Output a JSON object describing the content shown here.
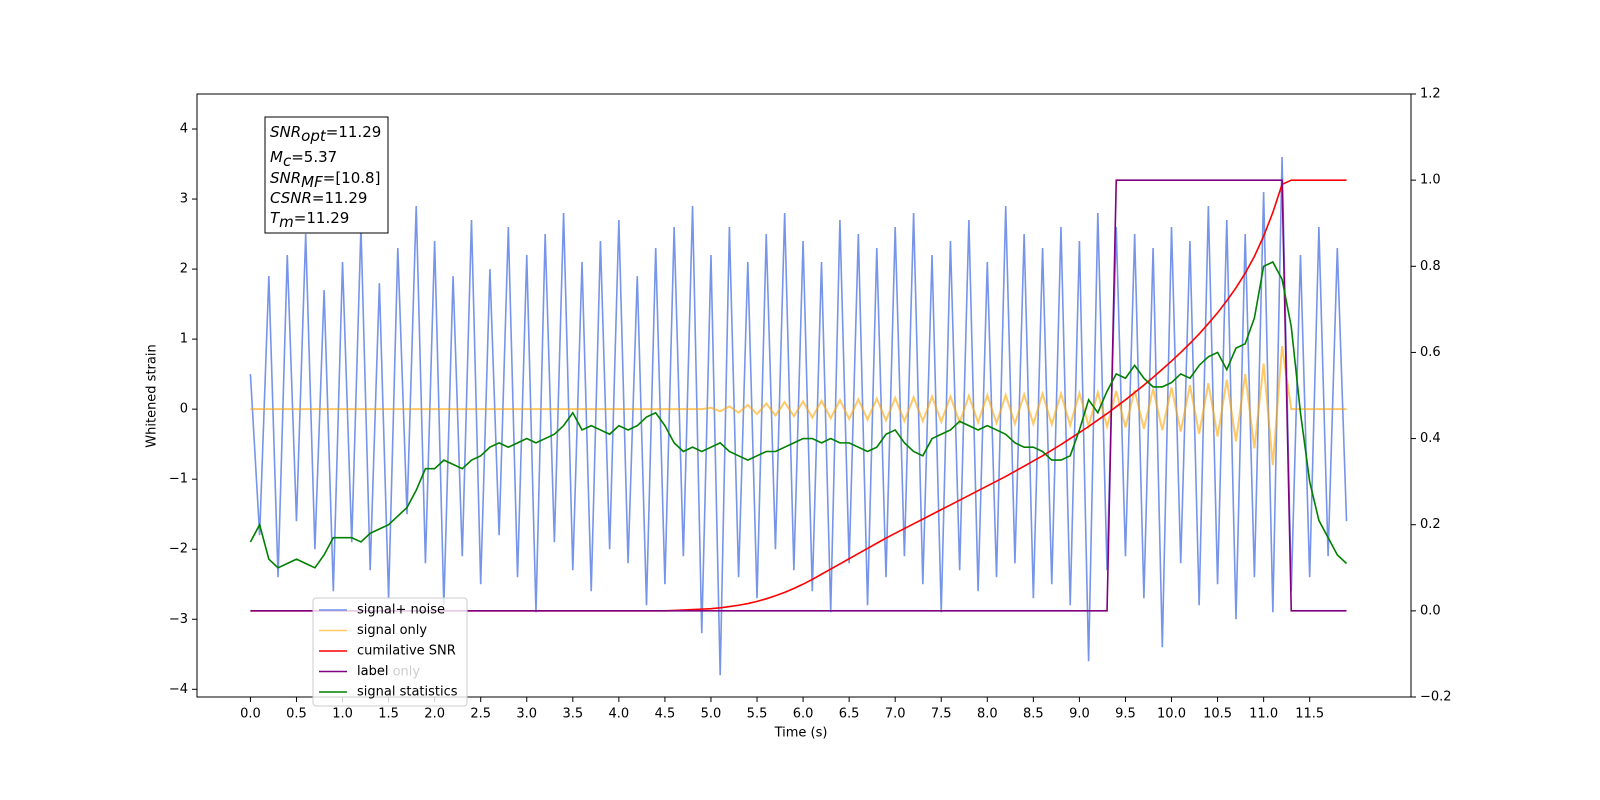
{
  "chart_data": {
    "type": "line",
    "xlabel": "Time (s)",
    "ylabel": "Whitened strain",
    "xlim": [
      -0.58,
      12.6
    ],
    "ylim": [
      -4.11,
      4.5
    ],
    "y2lim": [
      -0.2,
      1.2
    ],
    "xticks": [
      {
        "value": 0,
        "label": "0.0"
      },
      0.5,
      {
        "value": 1,
        "label": "1.0"
      },
      1.5,
      {
        "value": 2,
        "label": "2.0"
      },
      2.5,
      {
        "value": 3,
        "label": "3.0"
      },
      3.5,
      {
        "value": 4,
        "label": "4.0"
      },
      4.5,
      {
        "value": 5,
        "label": "5.0"
      },
      5.5,
      {
        "value": 6,
        "label": "6.0"
      },
      6.5,
      {
        "value": 7,
        "label": "7.0"
      },
      7.5,
      {
        "value": 8,
        "label": "8.0"
      },
      8.5,
      {
        "value": 9,
        "label": "9.0"
      },
      9.5,
      {
        "value": 10,
        "label": "10.0"
      },
      10.5,
      {
        "value": 11,
        "label": "11.0"
      },
      11.5
    ],
    "yticks": [
      {
        "value": -4,
        "label": "−4"
      },
      {
        "value": -3,
        "label": "−3"
      },
      {
        "value": -2,
        "label": "−2"
      },
      {
        "value": -1,
        "label": "−1"
      },
      0,
      1,
      2,
      3,
      4
    ],
    "y2ticks": [
      {
        "value": -0.2,
        "label": "−0.2"
      },
      {
        "value": 0,
        "label": "0.0"
      },
      0.2,
      0.4,
      0.6,
      0.8,
      {
        "value": 1,
        "label": "1.0"
      },
      1.2
    ],
    "grid": false,
    "legend": "lower left",
    "legend_ghost_text": "label only",
    "stats": [
      {
        "symbol": "SNR",
        "sub": "opt",
        "text": "=11.29"
      },
      {
        "symbol": "M",
        "sub": "c",
        "text": "=5.37"
      },
      {
        "symbol": "SNR",
        "sub": "MF",
        "text": "=[10.8]"
      },
      {
        "symbol": "CSNR",
        "text": "=11.29"
      },
      {
        "symbol": "T",
        "sub": "m",
        "text": "=11.29"
      }
    ],
    "x": [
      0,
      0.1,
      0.2,
      0.3,
      0.4,
      0.5,
      0.6,
      0.7,
      0.8,
      0.9,
      1,
      1.1,
      1.2,
      1.3,
      1.4,
      1.5,
      1.6,
      1.7,
      1.8,
      1.9,
      2,
      2.1,
      2.2,
      2.3,
      2.4,
      2.5,
      2.6,
      2.7,
      2.8,
      2.9,
      3,
      3.1,
      3.2,
      3.3,
      3.4,
      3.5,
      3.6,
      3.7,
      3.8,
      3.9,
      4,
      4.1,
      4.2,
      4.3,
      4.4,
      4.5,
      4.6,
      4.7,
      4.8,
      4.9,
      5,
      5.1,
      5.2,
      5.3,
      5.4,
      5.5,
      5.6,
      5.7,
      5.8,
      5.9,
      6,
      6.1,
      6.2,
      6.3,
      6.4,
      6.5,
      6.6,
      6.7,
      6.8,
      6.9,
      7,
      7.1,
      7.2,
      7.3,
      7.4,
      7.5,
      7.6,
      7.7,
      7.8,
      7.9,
      8,
      8.1,
      8.2,
      8.3,
      8.4,
      8.5,
      8.6,
      8.7,
      8.8,
      8.9,
      9,
      9.1,
      9.2,
      9.3,
      9.4,
      9.5,
      9.6,
      9.7,
      9.8,
      9.9,
      10,
      10.1,
      10.2,
      10.3,
      10.4,
      10.5,
      10.6,
      10.7,
      10.8,
      10.9,
      11,
      11.1,
      11.2,
      11.3,
      11.4,
      11.5,
      11.6,
      11.7,
      11.8,
      11.9
    ],
    "series": [
      {
        "name": "signal+ noise",
        "color": "#6f8ee8",
        "axis": "y",
        "values": [
          0.5,
          -1.8,
          1.9,
          -2.4,
          2.2,
          -1.6,
          2.5,
          -2.0,
          1.7,
          -2.6,
          2.1,
          -1.9,
          2.6,
          -2.3,
          1.8,
          -2.7,
          2.3,
          -1.5,
          2.9,
          -2.2,
          2.4,
          -2.8,
          1.9,
          -2.1,
          2.7,
          -2.5,
          2.0,
          -1.8,
          2.6,
          -2.4,
          2.2,
          -2.9,
          2.5,
          -1.9,
          2.8,
          -2.3,
          2.1,
          -2.6,
          2.4,
          -2.0,
          2.7,
          -2.2,
          1.9,
          -2.8,
          2.3,
          -2.5,
          2.6,
          -2.1,
          2.9,
          -3.2,
          2.2,
          -3.8,
          2.6,
          -2.4,
          2.1,
          -2.7,
          2.5,
          -2.0,
          2.8,
          -2.3,
          2.4,
          -2.6,
          2.1,
          -2.9,
          2.7,
          -2.2,
          2.5,
          -2.8,
          2.3,
          -2.4,
          2.6,
          -2.1,
          2.8,
          -2.5,
          2.2,
          -2.9,
          2.4,
          -2.3,
          2.7,
          -2.6,
          2.1,
          -2.4,
          2.9,
          -2.2,
          2.5,
          -2.7,
          2.3,
          -2.5,
          2.6,
          -2.8,
          2.4,
          -3.6,
          2.8,
          -2.3,
          2.6,
          -2.1,
          2.5,
          -2.7,
          2.3,
          -3.4,
          2.6,
          -2.2,
          2.4,
          -2.8,
          2.9,
          -2.5,
          2.7,
          -3.0,
          2.5,
          -2.4,
          3.1,
          -2.9,
          3.6,
          -2.6,
          2.2,
          -2.4,
          2.6,
          -2.1,
          2.3,
          -1.6
        ]
      },
      {
        "name": "signal only",
        "color": "#ffa500",
        "axis": "y",
        "values": [
          0,
          0,
          0,
          0,
          0,
          0,
          0,
          0,
          0,
          0,
          0,
          0,
          0,
          0,
          0,
          0,
          0,
          0,
          0,
          0,
          0,
          0,
          0,
          0,
          0,
          0,
          0,
          0,
          0,
          0,
          0,
          0,
          0,
          0,
          0,
          0,
          0,
          0,
          0,
          0,
          0,
          0,
          0,
          0,
          0,
          0,
          0,
          0,
          0,
          0,
          0.02,
          -0.03,
          0.04,
          -0.05,
          0.06,
          -0.07,
          0.08,
          -0.09,
          0.1,
          -0.1,
          0.11,
          -0.12,
          0.12,
          -0.13,
          0.13,
          -0.14,
          0.14,
          -0.15,
          0.15,
          -0.16,
          0.16,
          -0.17,
          0.17,
          -0.17,
          0.18,
          -0.18,
          0.18,
          -0.19,
          0.19,
          -0.19,
          0.2,
          -0.2,
          0.2,
          -0.21,
          0.21,
          -0.21,
          0.22,
          -0.22,
          0.22,
          -0.23,
          0.23,
          -0.24,
          0.24,
          -0.25,
          0.26,
          -0.26,
          0.27,
          -0.28,
          0.29,
          -0.3,
          0.31,
          -0.32,
          0.34,
          -0.35,
          0.37,
          -0.39,
          0.42,
          -0.46,
          0.5,
          -0.56,
          0.65,
          -0.8,
          0.9,
          0,
          0,
          0,
          0,
          0,
          0,
          0
        ]
      },
      {
        "name": "cumilative SNR",
        "color": "#ff0000",
        "axis": "y2",
        "values": [
          0,
          0,
          0,
          0,
          0,
          0,
          0,
          0,
          0,
          0,
          0,
          0,
          0,
          0,
          0,
          0,
          0,
          0,
          0,
          0,
          0,
          0,
          0,
          0,
          0,
          0,
          0,
          0,
          0,
          0,
          0,
          0,
          0,
          0,
          0,
          0,
          0,
          0,
          0,
          0,
          0,
          0,
          0,
          0,
          0,
          0,
          0.001,
          0.002,
          0.003,
          0.004,
          0.005,
          0.007,
          0.01,
          0.013,
          0.017,
          0.022,
          0.028,
          0.035,
          0.043,
          0.052,
          0.062,
          0.073,
          0.085,
          0.097,
          0.109,
          0.121,
          0.133,
          0.145,
          0.157,
          0.169,
          0.18,
          0.191,
          0.202,
          0.213,
          0.224,
          0.235,
          0.246,
          0.257,
          0.268,
          0.279,
          0.29,
          0.301,
          0.312,
          0.324,
          0.336,
          0.348,
          0.36,
          0.373,
          0.386,
          0.4,
          0.414,
          0.428,
          0.443,
          0.458,
          0.474,
          0.49,
          0.507,
          0.524,
          0.542,
          0.561,
          0.58,
          0.6,
          0.621,
          0.643,
          0.667,
          0.692,
          0.72,
          0.75,
          0.784,
          0.823,
          0.87,
          0.925,
          0.99,
          1,
          1,
          1,
          1,
          1,
          1,
          1
        ]
      },
      {
        "name": "label",
        "color": "#800080",
        "axis": "y2",
        "values": [
          0,
          0,
          0,
          0,
          0,
          0,
          0,
          0,
          0,
          0,
          0,
          0,
          0,
          0,
          0,
          0,
          0,
          0,
          0,
          0,
          0,
          0,
          0,
          0,
          0,
          0,
          0,
          0,
          0,
          0,
          0,
          0,
          0,
          0,
          0,
          0,
          0,
          0,
          0,
          0,
          0,
          0,
          0,
          0,
          0,
          0,
          0,
          0,
          0,
          0,
          0,
          0,
          0,
          0,
          0,
          0,
          0,
          0,
          0,
          0,
          0,
          0,
          0,
          0,
          0,
          0,
          0,
          0,
          0,
          0,
          0,
          0,
          0,
          0,
          0,
          0,
          0,
          0,
          0,
          0,
          0,
          0,
          0,
          0,
          0,
          0,
          0,
          0,
          0,
          0,
          0,
          0,
          0,
          0,
          1,
          1,
          1,
          1,
          1,
          1,
          1,
          1,
          1,
          1,
          1,
          1,
          1,
          1,
          1,
          1,
          1,
          1,
          1,
          0,
          0,
          0,
          0,
          0,
          0,
          0
        ]
      },
      {
        "name": "signal statistics",
        "color": "#008000",
        "axis": "y2",
        "values": [
          0.16,
          0.2,
          0.12,
          0.1,
          0.11,
          0.12,
          0.11,
          0.1,
          0.13,
          0.17,
          0.17,
          0.17,
          0.16,
          0.18,
          0.19,
          0.2,
          0.22,
          0.24,
          0.28,
          0.33,
          0.33,
          0.35,
          0.34,
          0.33,
          0.35,
          0.36,
          0.38,
          0.39,
          0.38,
          0.39,
          0.4,
          0.39,
          0.4,
          0.41,
          0.43,
          0.46,
          0.42,
          0.43,
          0.42,
          0.41,
          0.43,
          0.42,
          0.43,
          0.45,
          0.46,
          0.43,
          0.39,
          0.37,
          0.38,
          0.37,
          0.38,
          0.39,
          0.37,
          0.36,
          0.35,
          0.36,
          0.37,
          0.37,
          0.38,
          0.39,
          0.4,
          0.4,
          0.39,
          0.4,
          0.39,
          0.39,
          0.38,
          0.37,
          0.38,
          0.41,
          0.42,
          0.39,
          0.37,
          0.36,
          0.4,
          0.41,
          0.42,
          0.44,
          0.43,
          0.42,
          0.43,
          0.42,
          0.41,
          0.39,
          0.38,
          0.38,
          0.37,
          0.35,
          0.35,
          0.36,
          0.42,
          0.49,
          0.46,
          0.51,
          0.55,
          0.54,
          0.57,
          0.54,
          0.52,
          0.52,
          0.53,
          0.55,
          0.54,
          0.57,
          0.59,
          0.6,
          0.56,
          0.61,
          0.62,
          0.68,
          0.8,
          0.81,
          0.77,
          0.66,
          0.46,
          0.3,
          0.21,
          0.17,
          0.13,
          0.11
        ]
      }
    ]
  }
}
